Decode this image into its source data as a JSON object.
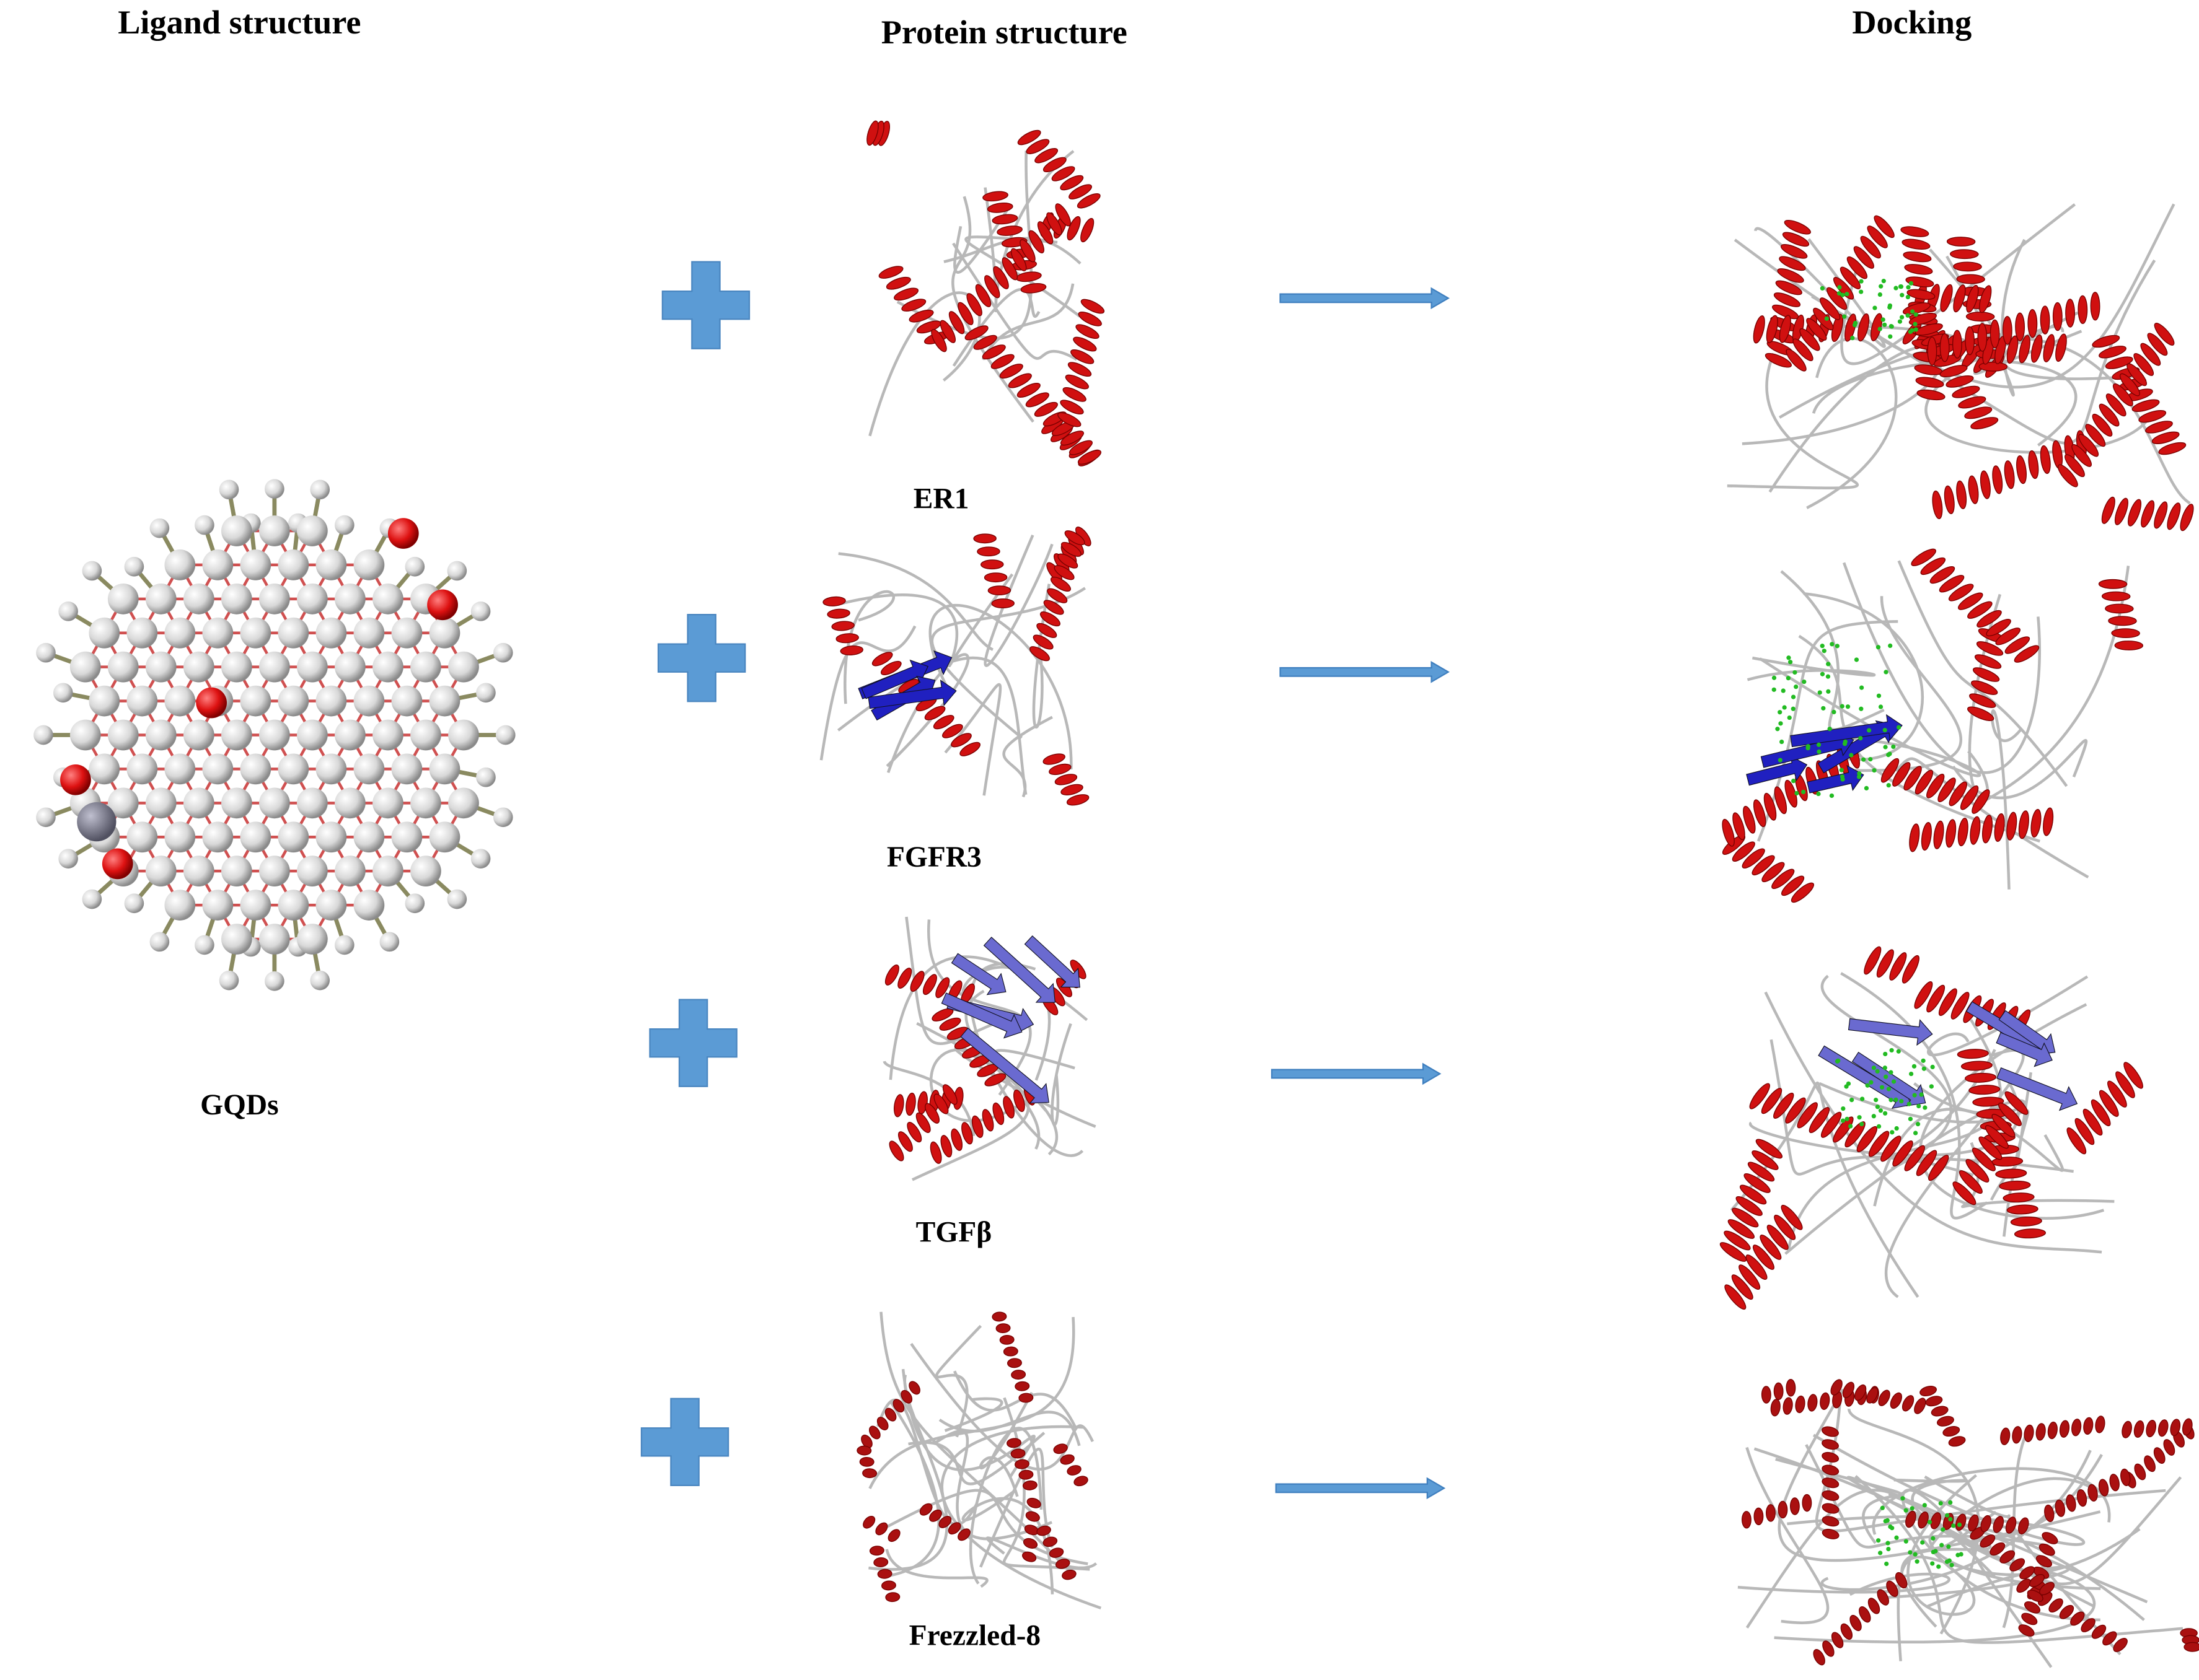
{
  "headers": {
    "ligand": "Ligand structure",
    "protein": "Protein structure",
    "docking": "Docking"
  },
  "ligand": {
    "name": "GQDs"
  },
  "proteins": [
    {
      "name": "ER1"
    },
    {
      "name": "FGFR3"
    },
    {
      "name": "TGFβ"
    },
    {
      "name": "Frezzled-8"
    }
  ],
  "icons": {
    "plus": "plus-icon",
    "arrow": "arrow-right-icon"
  },
  "colors": {
    "plus": "#5b9bd5",
    "arrow": "#5b9bd5",
    "helix": "#d01010",
    "strand": "#2020c0",
    "loop": "#b8b8b8",
    "ligand_docked": "#22bb22",
    "oxygen": "#dd1111",
    "carbon": "#e0e0e0"
  }
}
